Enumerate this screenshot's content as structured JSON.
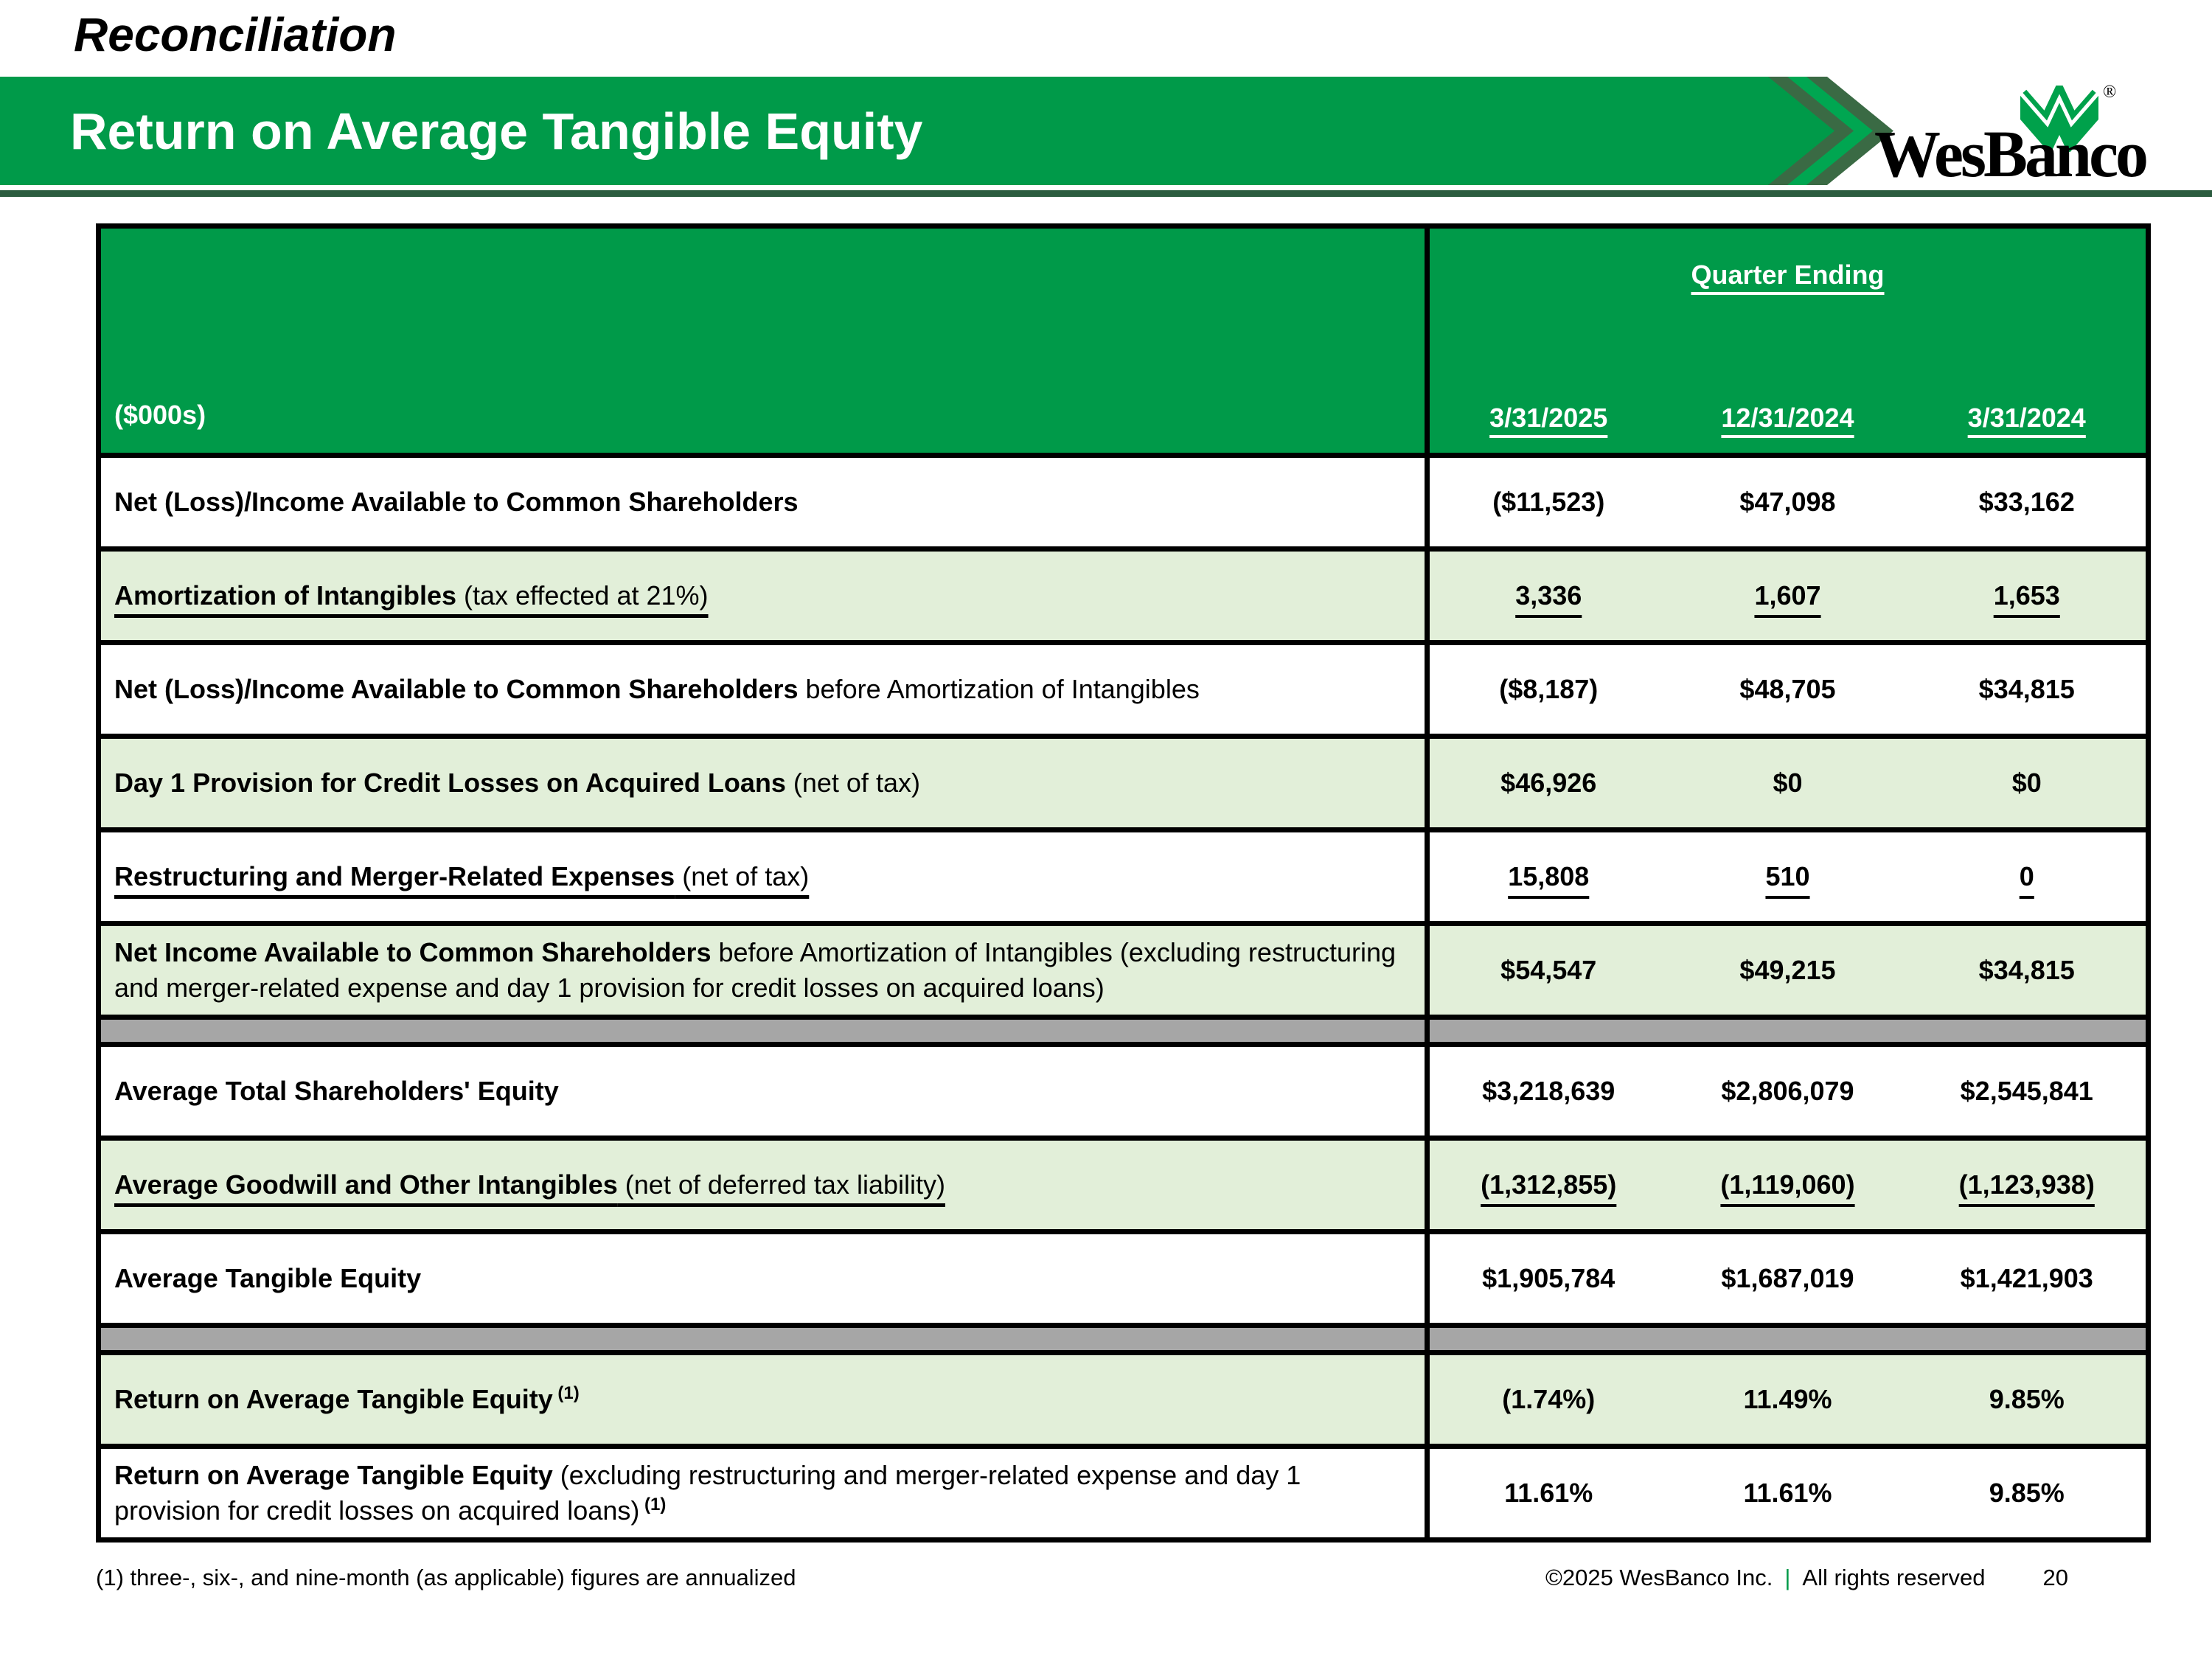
{
  "page": {
    "eyebrow_title": "Reconciliation"
  },
  "header": {
    "bar_title": "Return on Average Tangible Equity",
    "logo_text": "WesBanco",
    "registered_mark": "®"
  },
  "table": {
    "unit_label": "($000s)",
    "group_header": "Quarter Ending",
    "columns": [
      "3/31/2025",
      "12/31/2024",
      "3/31/2024"
    ],
    "rows": [
      {
        "label_bold": "Net (Loss)/Income Available to Common Shareholders",
        "label_rest": "",
        "values": [
          "($11,523)",
          "$47,098",
          "$33,162"
        ],
        "bg": "white",
        "underline": false
      },
      {
        "label_bold": "Amortization of Intangibles",
        "label_rest": " (tax effected at 21%)",
        "values": [
          "3,336",
          "1,607",
          "1,653"
        ],
        "bg": "green",
        "underline": true
      },
      {
        "label_bold": "Net (Loss)/Income Available to Common Shareholders",
        "label_rest": " before Amortization of Intangibles",
        "values": [
          "($8,187)",
          "$48,705",
          "$34,815"
        ],
        "bg": "white",
        "underline": false
      },
      {
        "label_bold": "Day 1 Provision for Credit Losses on Acquired Loans",
        "label_rest": " (net of tax)",
        "values": [
          "$46,926",
          "$0",
          "$0"
        ],
        "bg": "green",
        "underline": false
      },
      {
        "label_bold": "Restructuring and Merger-Related Expenses",
        "label_rest": " (net of tax)",
        "values": [
          "15,808",
          "510",
          "0"
        ],
        "bg": "white",
        "underline": true
      },
      {
        "label_bold": "Net Income Available to Common Shareholders",
        "label_rest": " before Amortization of Intangibles (excluding restructuring and merger-related expense and day 1 provision for credit losses on acquired loans)",
        "values": [
          "$54,547",
          "$49,215",
          "$34,815"
        ],
        "bg": "green",
        "underline": false
      },
      {
        "spacer": true
      },
      {
        "label_bold": "Average Total Shareholders' Equity",
        "label_rest": "",
        "values": [
          "$3,218,639",
          "$2,806,079",
          "$2,545,841"
        ],
        "bg": "white",
        "underline": false
      },
      {
        "label_bold": "Average Goodwill and Other Intangibles",
        "label_rest": " (net of deferred tax liability)",
        "values": [
          "(1,312,855)",
          "(1,119,060)",
          "(1,123,938)"
        ],
        "bg": "green",
        "underline": true
      },
      {
        "label_bold": "Average Tangible Equity",
        "label_rest": "",
        "values": [
          "$1,905,784",
          "$1,687,019",
          "$1,421,903"
        ],
        "bg": "white",
        "underline": false
      },
      {
        "spacer": true
      },
      {
        "label_bold": "Return on Average Tangible Equity",
        "label_rest": "",
        "label_sup": "(1)",
        "values": [
          "(1.74%)",
          "11.49%",
          "9.85%"
        ],
        "bg": "green",
        "underline": false
      },
      {
        "label_bold": "Return on Average Tangible Equity",
        "label_rest": " (excluding restructuring and merger-related expense and day 1 provision for credit losses on acquired loans)",
        "label_sup": "(1)",
        "values": [
          "11.61%",
          "11.61%",
          "9.85%"
        ],
        "bg": "white",
        "underline": false
      }
    ]
  },
  "footer": {
    "footnote": "(1) three-, six-, and nine-month (as applicable) figures are annualized",
    "copyright": "©2025 WesBanco Inc.",
    "divider": "|",
    "rights": "All rights reserved",
    "page_number": "20"
  },
  "colors": {
    "brand_green": "#009A49",
    "chevron_bright_green": "#00A651",
    "chevron_dark_green": "#3A6A44",
    "dark_green_rule": "#2B5C3F",
    "row_light_green": "#E2EFD9",
    "spacer_gray": "#A6A6A6",
    "border_black": "#000000"
  }
}
